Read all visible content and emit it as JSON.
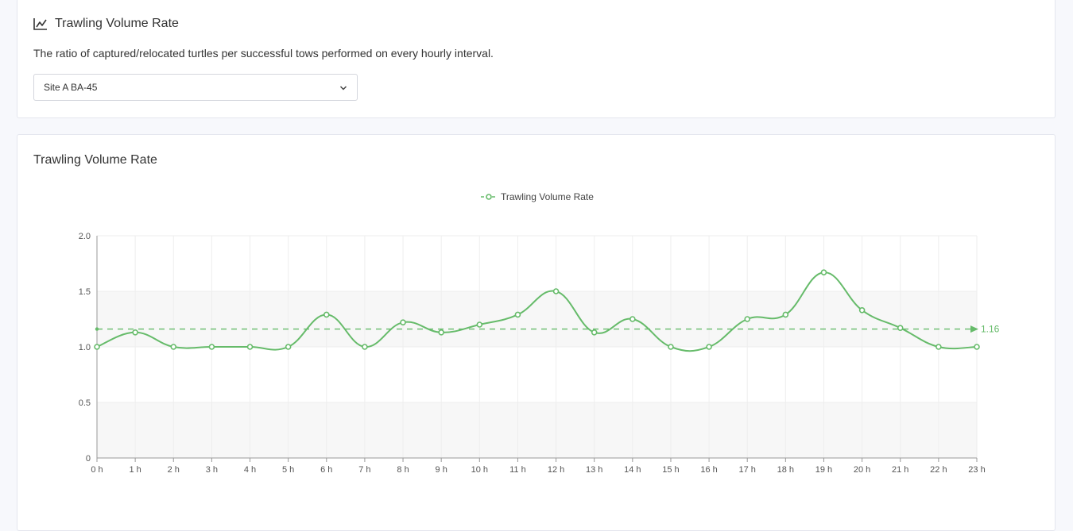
{
  "top_card": {
    "title": "Trawling Volume Rate",
    "icon": "line-chart-icon",
    "description": "The ratio of captured/relocated turtles per successful tows performed on every hourly interval.",
    "site_select": {
      "selected": "Site A BA-45"
    }
  },
  "chart_card": {
    "title": "Trawling Volume Rate"
  },
  "colors": {
    "series": "#66bb6a",
    "avg": "#66bb6a",
    "grid": "#eeeeee",
    "band": "#f7f7f7"
  },
  "chart_data": {
    "type": "line",
    "title": "",
    "xlabel": "",
    "ylabel": "",
    "categories": [
      "0 h",
      "1 h",
      "2 h",
      "3 h",
      "4 h",
      "5 h",
      "6 h",
      "7 h",
      "8 h",
      "9 h",
      "10 h",
      "11 h",
      "12 h",
      "13 h",
      "14 h",
      "15 h",
      "16 h",
      "17 h",
      "18 h",
      "19 h",
      "20 h",
      "21 h",
      "22 h",
      "23 h"
    ],
    "series": [
      {
        "name": "Trawling Volume Rate",
        "values": [
          1.0,
          1.13,
          1.0,
          1.0,
          1.0,
          1.0,
          1.29,
          1.0,
          1.22,
          1.13,
          1.2,
          1.29,
          1.5,
          1.13,
          1.25,
          1.0,
          1.0,
          1.25,
          1.29,
          1.67,
          1.33,
          1.17,
          1.0,
          1.0
        ]
      }
    ],
    "ylim": [
      0,
      2.0
    ],
    "yticks": [
      0,
      0.5,
      1.0,
      1.5,
      2.0
    ],
    "ytick_labels": [
      "0",
      "0.5",
      "1.0",
      "1.5",
      "2.0"
    ],
    "average": {
      "value": 1.16,
      "label": "1.16"
    },
    "legend": {
      "position": "top",
      "label": "Trawling Volume Rate"
    },
    "grid": true
  }
}
